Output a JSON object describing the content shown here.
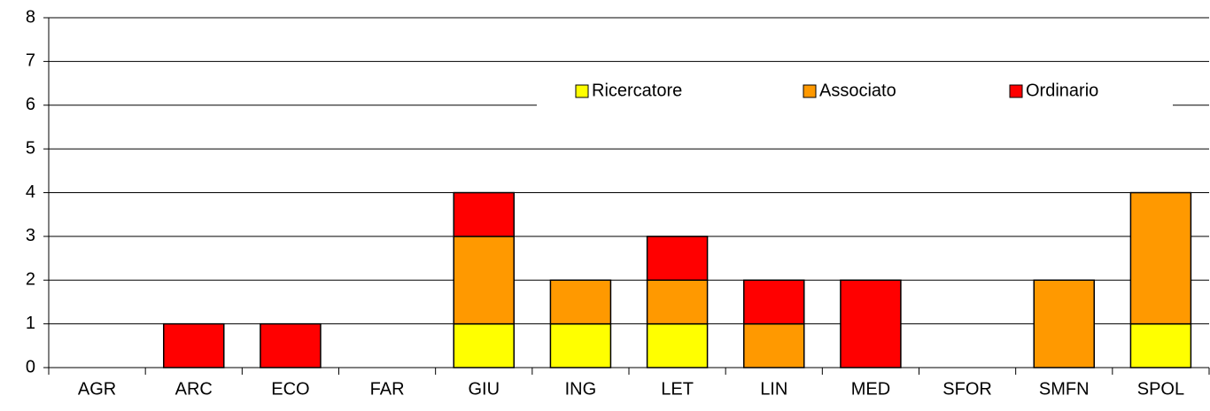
{
  "chart_data": {
    "type": "stacked_bar",
    "categories": [
      "AGR",
      "ARC",
      "ECO",
      "FAR",
      "GIU",
      "ING",
      "LET",
      "LIN",
      "MED",
      "SFOR",
      "SMFN",
      "SPOL"
    ],
    "series": [
      {
        "name": "Ricercatore",
        "color": "#ffff00",
        "values": [
          0,
          0,
          0,
          0,
          1,
          1,
          1,
          0,
          0,
          0,
          0,
          1
        ]
      },
      {
        "name": "Associato",
        "color": "#ff9900",
        "values": [
          0,
          0,
          0,
          0,
          2,
          1,
          1,
          1,
          0,
          0,
          2,
          3
        ]
      },
      {
        "name": "Ordinario",
        "color": "#ff0000",
        "values": [
          0,
          1,
          1,
          0,
          1,
          0,
          1,
          1,
          2,
          0,
          0,
          0
        ]
      }
    ],
    "ylim": [
      0,
      8
    ],
    "yticks": [
      0,
      1,
      2,
      3,
      4,
      5,
      6,
      7,
      8
    ],
    "grid": true
  }
}
